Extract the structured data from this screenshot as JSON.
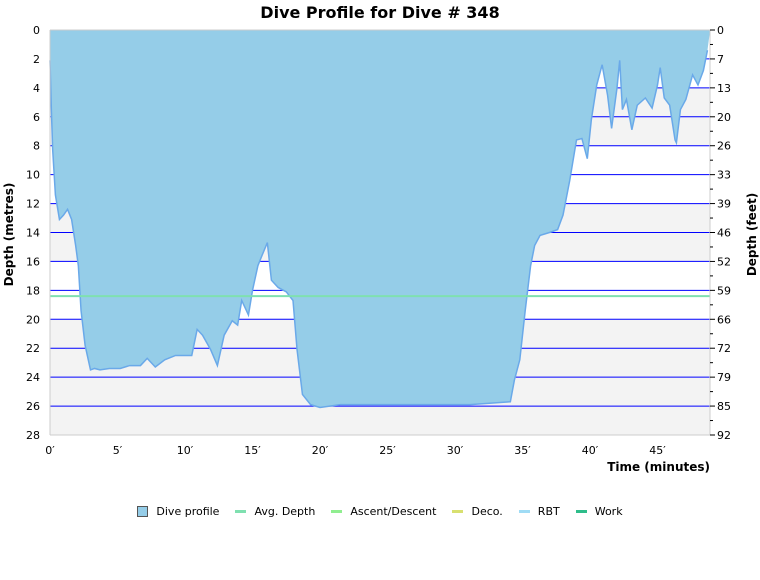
{
  "chart_data": {
    "type": "area",
    "title": "Dive Profile for Dive # 348",
    "xlabel": "Time (minutes)",
    "ylabel": "Depth (metres)",
    "ylabel_right": "Depth (feet)",
    "xlim": [
      0,
      49
    ],
    "ylim": [
      0,
      28
    ],
    "x_ticks": [
      "0′",
      "5′",
      "10′",
      "15′",
      "20′",
      "25′",
      "30′",
      "35′",
      "40′",
      "45′"
    ],
    "y_ticks": [
      "0",
      "2",
      "4",
      "6",
      "8",
      "10",
      "12",
      "14",
      "16",
      "18",
      "20",
      "22",
      "24",
      "26",
      "28"
    ],
    "y_ticks_right": [
      "0",
      "7",
      "13",
      "20",
      "26",
      "33",
      "39",
      "46",
      "52",
      "59",
      "66",
      "72",
      "79",
      "85",
      "92"
    ],
    "grid": true,
    "legend_position": "bottom",
    "avg_depth": 18.4,
    "colors": {
      "profile_fill": "#95cde8",
      "profile_line": "#6aa9e9",
      "avg_depth": "#7fe0b0",
      "ascent": "#90ee90",
      "deco": "#d8e070",
      "rbt": "#a0dcf5",
      "work": "#2ebd8a",
      "grid": "#0000ff",
      "band": "#f3f3f3"
    },
    "series": [
      {
        "name": "Dive profile",
        "points": [
          [
            0,
            0
          ],
          [
            0,
            2.1
          ],
          [
            0.1,
            5.5
          ],
          [
            0.2,
            8.3
          ],
          [
            0.4,
            11.4
          ],
          [
            0.7,
            13.1
          ],
          [
            1.0,
            12.8
          ],
          [
            1.3,
            12.4
          ],
          [
            1.6,
            13.1
          ],
          [
            1.9,
            14.9
          ],
          [
            2.1,
            16.3
          ],
          [
            2.3,
            19.4
          ],
          [
            2.6,
            21.8
          ],
          [
            3.0,
            23.5
          ],
          [
            3.3,
            23.4
          ],
          [
            3.7,
            23.5
          ],
          [
            4.4,
            23.4
          ],
          [
            5.2,
            23.4
          ],
          [
            5.9,
            23.2
          ],
          [
            6.7,
            23.2
          ],
          [
            7.2,
            22.7
          ],
          [
            7.8,
            23.3
          ],
          [
            8.5,
            22.8
          ],
          [
            9.3,
            22.5
          ],
          [
            10.0,
            22.5
          ],
          [
            10.5,
            22.5
          ],
          [
            10.9,
            20.7
          ],
          [
            11.3,
            21.1
          ],
          [
            11.9,
            22.1
          ],
          [
            12.4,
            23.2
          ],
          [
            12.9,
            21.1
          ],
          [
            13.5,
            20.1
          ],
          [
            13.9,
            20.4
          ],
          [
            14.2,
            18.7
          ],
          [
            14.7,
            19.7
          ],
          [
            15.0,
            18.0
          ],
          [
            15.4,
            16.3
          ],
          [
            15.7,
            15.6
          ],
          [
            16.1,
            14.7
          ],
          [
            16.4,
            17.3
          ],
          [
            16.9,
            17.8
          ],
          [
            17.5,
            18.1
          ],
          [
            18.0,
            18.7
          ],
          [
            18.3,
            22.1
          ],
          [
            18.7,
            25.2
          ],
          [
            19.3,
            25.9
          ],
          [
            20.0,
            26.1
          ],
          [
            21.5,
            25.9
          ],
          [
            24.4,
            25.9
          ],
          [
            27.4,
            25.9
          ],
          [
            31.1,
            25.9
          ],
          [
            34.1,
            25.7
          ],
          [
            34.4,
            24.2
          ],
          [
            34.8,
            22.8
          ],
          [
            35.2,
            19.4
          ],
          [
            35.6,
            16.3
          ],
          [
            35.9,
            14.9
          ],
          [
            36.3,
            14.2
          ],
          [
            37.0,
            14.0
          ],
          [
            37.6,
            13.8
          ],
          [
            38.0,
            12.8
          ],
          [
            38.5,
            10.4
          ],
          [
            39.0,
            7.6
          ],
          [
            39.4,
            7.5
          ],
          [
            39.8,
            8.9
          ],
          [
            40.1,
            6.2
          ],
          [
            40.5,
            3.8
          ],
          [
            40.9,
            2.4
          ],
          [
            41.3,
            4.5
          ],
          [
            41.6,
            6.8
          ],
          [
            42.0,
            4.0
          ],
          [
            42.2,
            2.1
          ],
          [
            42.4,
            5.5
          ],
          [
            42.7,
            4.8
          ],
          [
            43.1,
            6.9
          ],
          [
            43.5,
            5.2
          ],
          [
            44.1,
            4.7
          ],
          [
            44.6,
            5.4
          ],
          [
            45.0,
            3.8
          ],
          [
            45.2,
            2.6
          ],
          [
            45.5,
            4.7
          ],
          [
            45.9,
            5.2
          ],
          [
            46.3,
            7.6
          ],
          [
            46.4,
            7.8
          ],
          [
            46.7,
            5.5
          ],
          [
            47.1,
            4.8
          ],
          [
            47.6,
            3.1
          ],
          [
            48.0,
            3.8
          ],
          [
            48.4,
            2.8
          ],
          [
            48.7,
            1.4
          ],
          [
            48.9,
            0
          ]
        ]
      }
    ]
  },
  "legend": [
    {
      "label": "Dive profile",
      "kind": "box",
      "color": "#95cde8"
    },
    {
      "label": "Avg. Depth",
      "kind": "line",
      "color": "#7fe0b0"
    },
    {
      "label": "Ascent/Descent",
      "kind": "line",
      "color": "#90ee90"
    },
    {
      "label": "Deco.",
      "kind": "line",
      "color": "#d8e070"
    },
    {
      "label": "RBT",
      "kind": "line",
      "color": "#a0dcf5"
    },
    {
      "label": "Work",
      "kind": "line",
      "color": "#2ebd8a"
    }
  ]
}
